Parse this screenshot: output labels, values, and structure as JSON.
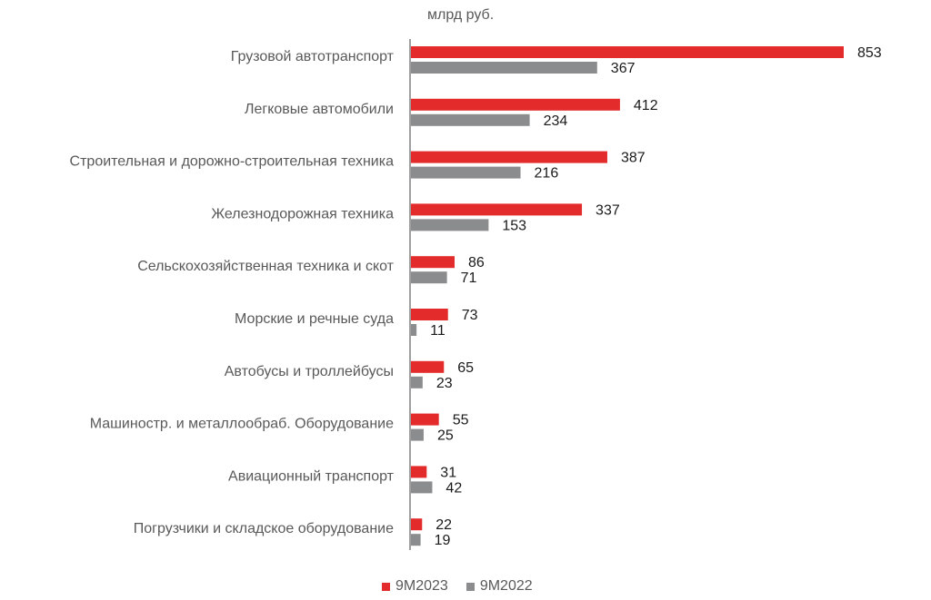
{
  "unit_label": "млрд руб.",
  "colors": {
    "series_2023": "#e32b2b",
    "series_2022": "#8a8c8e",
    "axis": "#3f3f3f",
    "category_text": "#595959",
    "value_text": "#1a1a1a"
  },
  "chart_data": {
    "type": "bar",
    "orientation": "horizontal",
    "categories": [
      "Грузовой автотранспорт",
      "Легковые автомобили",
      "Строительная и дорожно-строительная техника",
      "Железнодорожная техника",
      "Сельскохозяйственная техника и скот",
      "Морские и речные суда",
      "Автобусы и троллейбусы",
      "Машиностр. и металлообраб. Оборудование",
      "Авиационный транспорт",
      "Погрузчики и складское оборудование"
    ],
    "series": [
      {
        "name": "9М2023",
        "values": [
          853,
          412,
          387,
          337,
          86,
          73,
          65,
          55,
          31,
          22
        ]
      },
      {
        "name": "9М2022",
        "values": [
          367,
          234,
          216,
          153,
          71,
          11,
          23,
          25,
          42,
          19
        ]
      }
    ],
    "xlim": [
      0,
      900
    ],
    "grid": false,
    "legend_position": "bottom"
  }
}
